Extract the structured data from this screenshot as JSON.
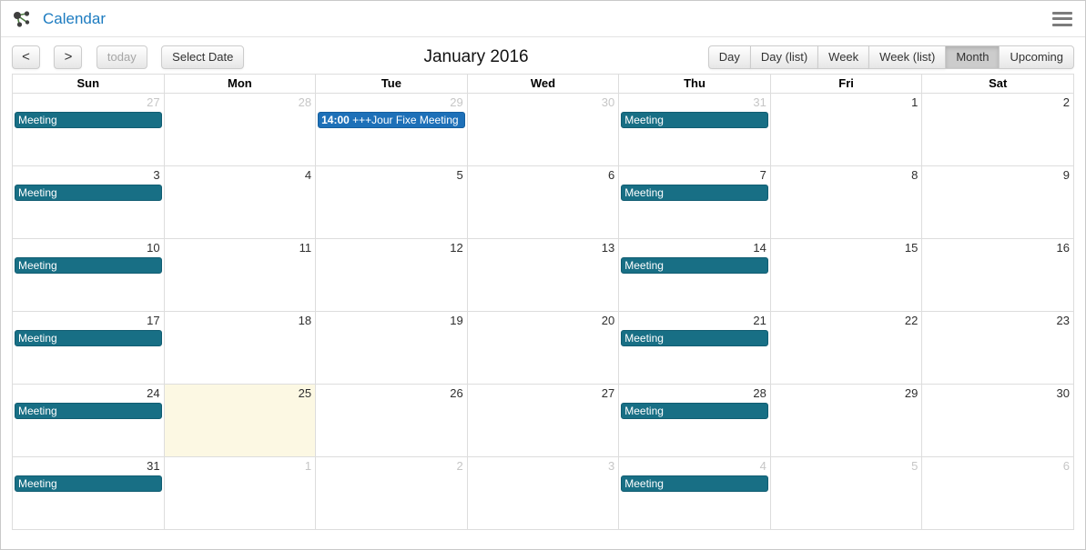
{
  "header": {
    "app_title": "Calendar",
    "logo_icon": "network-icon",
    "menu_icon": "hamburger-icon"
  },
  "toolbar": {
    "prev_label": "<",
    "next_label": ">",
    "today_label": "today",
    "today_disabled": true,
    "select_date_label": "Select Date",
    "title": "January 2016",
    "views": [
      "Day",
      "Day (list)",
      "Week",
      "Week (list)",
      "Month",
      "Upcoming"
    ],
    "active_view": "Month"
  },
  "calendar": {
    "day_headers": [
      "Sun",
      "Mon",
      "Tue",
      "Wed",
      "Thu",
      "Fri",
      "Sat"
    ],
    "colors": {
      "event_teal": "#186f85",
      "event_teal_border": "#115d72",
      "event_blue": "#1d70b8",
      "event_blue_border": "#15609f",
      "today_bg": "#fcf8e3",
      "title_blue": "#1c7bc0"
    },
    "weeks": [
      [
        {
          "date": "27",
          "muted": true,
          "events": [
            {
              "title": "Meeting",
              "type": "teal"
            }
          ]
        },
        {
          "date": "28",
          "muted": true
        },
        {
          "date": "29",
          "muted": true,
          "events": [
            {
              "time": "14:00",
              "title": "+++Jour Fixe Meeting",
              "type": "blue"
            }
          ]
        },
        {
          "date": "30",
          "muted": true
        },
        {
          "date": "31",
          "muted": true,
          "events": [
            {
              "title": "Meeting",
              "type": "teal"
            }
          ]
        },
        {
          "date": "1"
        },
        {
          "date": "2"
        }
      ],
      [
        {
          "date": "3",
          "events": [
            {
              "title": "Meeting",
              "type": "teal"
            }
          ]
        },
        {
          "date": "4"
        },
        {
          "date": "5"
        },
        {
          "date": "6"
        },
        {
          "date": "7",
          "events": [
            {
              "title": "Meeting",
              "type": "teal"
            }
          ]
        },
        {
          "date": "8"
        },
        {
          "date": "9"
        }
      ],
      [
        {
          "date": "10",
          "events": [
            {
              "title": "Meeting",
              "type": "teal"
            }
          ]
        },
        {
          "date": "11"
        },
        {
          "date": "12"
        },
        {
          "date": "13"
        },
        {
          "date": "14",
          "events": [
            {
              "title": "Meeting",
              "type": "teal"
            }
          ]
        },
        {
          "date": "15"
        },
        {
          "date": "16"
        }
      ],
      [
        {
          "date": "17",
          "events": [
            {
              "title": "Meeting",
              "type": "teal"
            }
          ]
        },
        {
          "date": "18"
        },
        {
          "date": "19"
        },
        {
          "date": "20"
        },
        {
          "date": "21",
          "events": [
            {
              "title": "Meeting",
              "type": "teal"
            }
          ]
        },
        {
          "date": "22"
        },
        {
          "date": "23"
        }
      ],
      [
        {
          "date": "24",
          "events": [
            {
              "title": "Meeting",
              "type": "teal"
            }
          ]
        },
        {
          "date": "25",
          "today": true
        },
        {
          "date": "26"
        },
        {
          "date": "27"
        },
        {
          "date": "28",
          "events": [
            {
              "title": "Meeting",
              "type": "teal"
            }
          ]
        },
        {
          "date": "29"
        },
        {
          "date": "30"
        }
      ],
      [
        {
          "date": "31",
          "events": [
            {
              "title": "Meeting",
              "type": "teal"
            }
          ]
        },
        {
          "date": "1",
          "muted": true
        },
        {
          "date": "2",
          "muted": true
        },
        {
          "date": "3",
          "muted": true
        },
        {
          "date": "4",
          "muted": true,
          "events": [
            {
              "title": "Meeting",
              "type": "teal"
            }
          ]
        },
        {
          "date": "5",
          "muted": true
        },
        {
          "date": "6",
          "muted": true
        }
      ]
    ]
  }
}
